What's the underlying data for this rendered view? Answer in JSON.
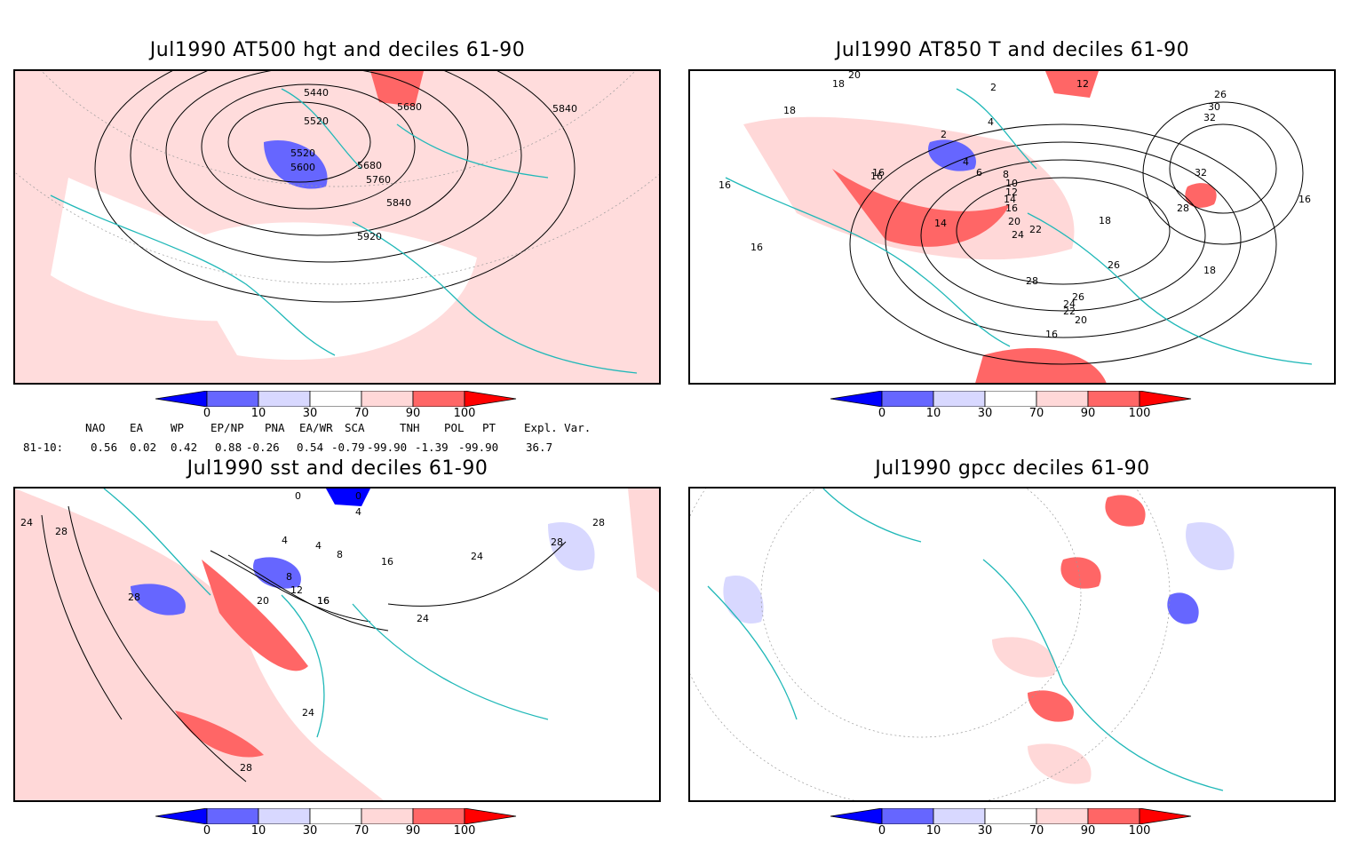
{
  "panels": [
    {
      "title": "Jul1990 AT500 hgt and deciles 61-90",
      "contour_labels": [
        "5440",
        "5520",
        "5520",
        "5600",
        "5680",
        "5680",
        "5760",
        "5840",
        "5840",
        "5920"
      ]
    },
    {
      "title": "Jul1990 AT850 T and deciles 61-90",
      "contour_labels": [
        "18",
        "18",
        "20",
        "2",
        "2",
        "4",
        "4",
        "6",
        "8",
        "10",
        "12",
        "14",
        "16",
        "16",
        "14",
        "20",
        "22",
        "24",
        "26",
        "28",
        "28",
        "26",
        "24",
        "22",
        "20",
        "16",
        "18",
        "26",
        "30",
        "32",
        "32",
        "16",
        "16",
        "16",
        "16",
        "12",
        "18"
      ]
    },
    {
      "title": "Jul1990 sst and deciles 61-90",
      "contour_labels": [
        "24",
        "28",
        "28",
        "20",
        "16",
        "12",
        "8",
        "8",
        "4",
        "4",
        "4",
        "0",
        "0",
        "24",
        "24",
        "28",
        "28",
        "28",
        "24",
        "16",
        "16"
      ]
    },
    {
      "title": "Jul1990 gpcc deciles 61-90",
      "contour_labels": []
    }
  ],
  "colorbar": {
    "labels": [
      "0",
      "10",
      "30",
      "70",
      "90",
      "100"
    ],
    "colors": [
      "#0000ff",
      "#6666ff",
      "#d8d8ff",
      "#ffffff",
      "#ffd8d8",
      "#ff6666",
      "#ff0000"
    ]
  },
  "indices": {
    "row_label": "81-10:",
    "names": [
      "NAO",
      "EA",
      "WP",
      "EP/NP",
      "PNA",
      "EA/WR",
      "SCA",
      "TNH",
      "POL",
      "PT",
      "Expl. Var."
    ],
    "values": [
      "0.56",
      "0.02",
      "0.42",
      "0.88",
      "-0.26",
      "0.54",
      "-0.79",
      "-99.90",
      "-1.39",
      "-99.90",
      "36.7"
    ]
  },
  "legend_colors": {
    "coast": "#20b8b8",
    "grid": "#999999"
  }
}
